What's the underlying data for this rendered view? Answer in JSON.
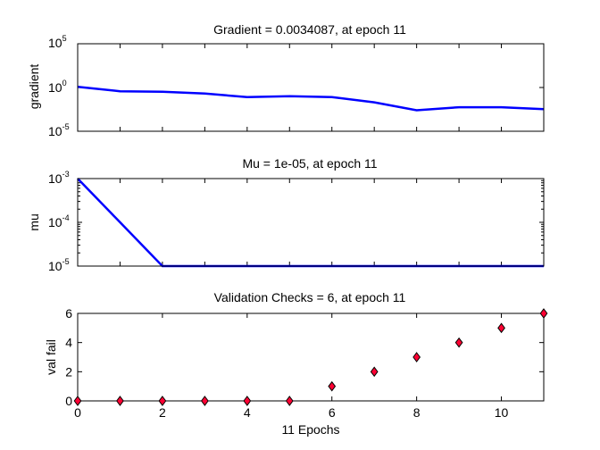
{
  "chart_data": [
    {
      "type": "line",
      "title": "Gradient = 0.0034087, at epoch 11",
      "xlabel": "",
      "ylabel": "gradient",
      "yscale": "log",
      "ylim": [
        1e-05,
        100000
      ],
      "xlim": [
        0,
        11
      ],
      "grid": false,
      "y_ticks": [
        {
          "base": "10",
          "exp": "5"
        },
        {
          "base": "10",
          "exp": "0"
        },
        {
          "base": "10",
          "exp": "-5"
        }
      ],
      "series": [
        {
          "color": "#0000ff",
          "x": [
            0,
            1,
            2,
            3,
            4,
            5,
            6,
            7,
            8,
            9,
            10,
            11
          ],
          "y": [
            1.2,
            0.37,
            0.32,
            0.2,
            0.08,
            0.1,
            0.08,
            0.02,
            0.0025,
            0.0055,
            0.0055,
            0.0034087
          ]
        }
      ]
    },
    {
      "type": "line",
      "title": "Mu = 1e-05, at epoch 11",
      "xlabel": "",
      "ylabel": "mu",
      "yscale": "log",
      "ylim": [
        1e-05,
        0.001
      ],
      "xlim": [
        0,
        11
      ],
      "grid": false,
      "y_ticks": [
        {
          "base": "10",
          "exp": "-3"
        },
        {
          "base": "10",
          "exp": "-4"
        },
        {
          "base": "10",
          "exp": "-5"
        }
      ],
      "series": [
        {
          "color": "#0000ff",
          "x": [
            0,
            1,
            2,
            3,
            4,
            5,
            6,
            7,
            8,
            9,
            10,
            11
          ],
          "y": [
            0.001,
            0.0001,
            1e-05,
            1e-05,
            1e-05,
            1e-05,
            1e-05,
            1e-05,
            1e-05,
            1e-05,
            1e-05,
            1e-05
          ]
        }
      ]
    },
    {
      "type": "scatter",
      "title": "Validation Checks = 6, at epoch 11",
      "xlabel": "11 Epochs",
      "ylabel": "val fail",
      "ylim": [
        0,
        6
      ],
      "xlim": [
        0,
        11
      ],
      "grid": false,
      "x_tick_labels": [
        "0",
        "2",
        "4",
        "6",
        "8",
        "10"
      ],
      "y_tick_labels": [
        "0",
        "2",
        "4",
        "6"
      ],
      "marker": "diamond",
      "marker_fill": "#ff0033",
      "marker_edge": "#000000",
      "series": [
        {
          "x": [
            0,
            1,
            2,
            3,
            4,
            5,
            6,
            7,
            8,
            9,
            10,
            11
          ],
          "y": [
            0,
            0,
            0,
            0,
            0,
            0,
            1,
            2,
            3,
            4,
            5,
            6
          ]
        }
      ]
    }
  ]
}
